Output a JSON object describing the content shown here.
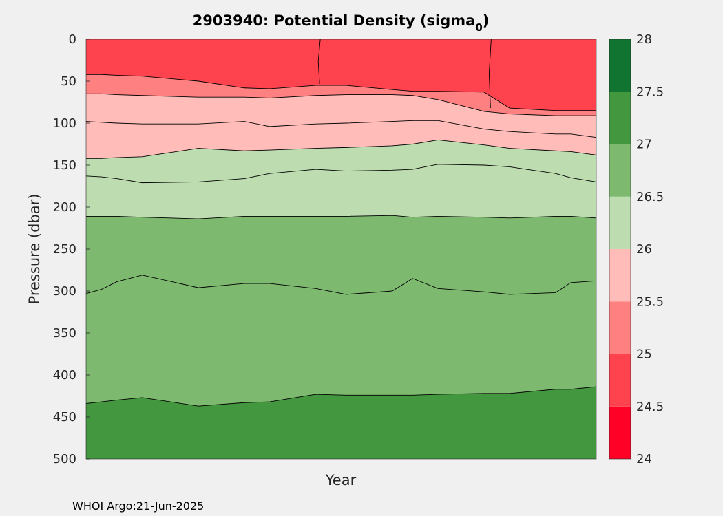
{
  "chart_data": {
    "type": "contour",
    "title_main": "2903940: Potential Density (sigma",
    "title_sub": "0",
    "title_end": ")",
    "xlabel": "Year",
    "ylabel": "Pressure (dbar)",
    "ylim": [
      0,
      500
    ],
    "y_reversed": true,
    "y_ticks": [
      "0",
      "50",
      "100",
      "150",
      "200",
      "250",
      "300",
      "350",
      "400",
      "450",
      "500"
    ],
    "y_tick_values": [
      0,
      50,
      100,
      150,
      200,
      250,
      300,
      350,
      400,
      450,
      500
    ],
    "colorbar": {
      "range": [
        24,
        28
      ],
      "ticks": [
        "24",
        "24.5",
        "25",
        "25.5",
        "26",
        "26.5",
        "27",
        "27.5",
        "28"
      ],
      "tick_values": [
        24,
        24.5,
        25,
        25.5,
        26,
        26.5,
        27,
        27.5,
        28
      ],
      "colors": [
        "#ff0026",
        "#ff434e",
        "#ff8080",
        "#ffbcb9",
        "#bddcb0",
        "#7eb970",
        "#43973f",
        "#117430"
      ]
    },
    "x_profile_fraction": [
      0.0,
      0.03,
      0.06,
      0.11,
      0.22,
      0.31,
      0.36,
      0.45,
      0.51,
      0.6,
      0.64,
      0.69,
      0.78,
      0.83,
      0.92,
      0.95,
      1.0
    ],
    "isopycnals": [
      {
        "sigma": "24.5",
        "pressure": [
          null,
          null,
          null,
          null,
          null,
          null,
          null,
          null,
          null,
          null,
          null,
          null,
          null,
          null,
          null,
          null,
          null
        ]
      },
      {
        "sigma": "25",
        "pressure": [
          42,
          42,
          43,
          44,
          50,
          58,
          59,
          55,
          55,
          60,
          62,
          62,
          63,
          82,
          85,
          85,
          85
        ]
      },
      {
        "sigma": "25.5",
        "pressure": [
          65,
          65,
          66,
          67,
          69,
          69,
          70,
          67,
          66,
          66,
          67,
          72,
          86,
          89,
          91,
          91,
          91
        ]
      },
      {
        "sigma": "25.75",
        "pressure": [
          98,
          99,
          100,
          101,
          101,
          98,
          104,
          101,
          100,
          98,
          97,
          97,
          107,
          110,
          113,
          113,
          117
        ]
      },
      {
        "sigma": "26",
        "pressure": [
          142,
          142,
          141,
          140,
          130,
          133,
          132,
          130,
          129,
          127,
          125,
          120,
          126,
          130,
          133,
          134,
          138
        ]
      },
      {
        "sigma": "26.25",
        "pressure": [
          163,
          164,
          166,
          171,
          170,
          166,
          160,
          155,
          157,
          156,
          155,
          149,
          150,
          152,
          160,
          165,
          170
        ]
      },
      {
        "sigma": "26.5",
        "pressure": [
          211,
          211,
          211,
          212,
          214,
          211,
          211,
          211,
          211,
          210,
          212,
          211,
          212,
          213,
          211,
          211,
          213
        ]
      },
      {
        "sigma": "26.75",
        "pressure": [
          303,
          298,
          289,
          281,
          296,
          291,
          291,
          297,
          304,
          300,
          285,
          297,
          301,
          304,
          302,
          290,
          288
        ]
      },
      {
        "sigma": "27",
        "pressure": [
          434,
          432,
          430,
          427,
          437,
          433,
          432,
          423,
          424,
          424,
          424,
          423,
          422,
          422,
          417,
          417,
          414
        ]
      }
    ],
    "contour_colors": [
      "#ff0026",
      "#ff434e",
      "#ff8080",
      "#ffbcb9",
      "#ffbcb9",
      "#bddcb0",
      "#bddcb0",
      "#7eb970",
      "#7eb970",
      "#43973f"
    ]
  },
  "footer": "WHOI Argo:21-Jun-2025"
}
